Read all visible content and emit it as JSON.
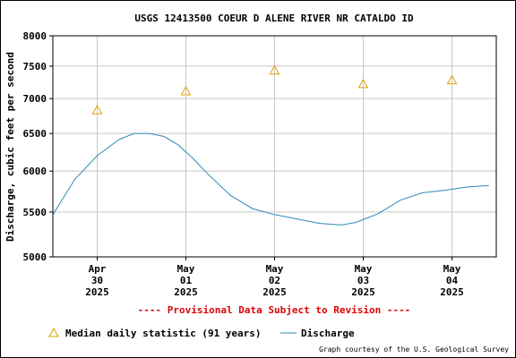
{
  "chart_data": {
    "type": "line",
    "title": "USGS 12413500 COEUR D ALENE RIVER NR CATALDO ID",
    "ylabel": "Discharge, cubic feet per second",
    "xlabel": "",
    "ylim": [
      5000,
      8000
    ],
    "yscale": "log",
    "yticks": [
      5000,
      5500,
      6000,
      6500,
      7000,
      7500,
      8000
    ],
    "grid": true,
    "xrange": [
      "2025-04-29 12:00",
      "2025-05-04 12:00"
    ],
    "xticks": [
      {
        "at": "2025-04-30 00:00",
        "lines": [
          "Apr",
          "30",
          "2025"
        ]
      },
      {
        "at": "2025-05-01 00:00",
        "lines": [
          "May",
          "01",
          "2025"
        ]
      },
      {
        "at": "2025-05-02 00:00",
        "lines": [
          "May",
          "02",
          "2025"
        ]
      },
      {
        "at": "2025-05-03 00:00",
        "lines": [
          "May",
          "03",
          "2025"
        ]
      },
      {
        "at": "2025-05-04 00:00",
        "lines": [
          "May",
          "04",
          "2025"
        ]
      }
    ],
    "series": [
      {
        "name": "Discharge",
        "color": "#2b8ab6",
        "x": [
          "2025-04-29 12:00",
          "2025-04-29 18:00",
          "2025-04-30 00:00",
          "2025-04-30 06:00",
          "2025-04-30 10:00",
          "2025-04-30 14:00",
          "2025-04-30 18:00",
          "2025-04-30 22:00",
          "2025-05-01 02:00",
          "2025-05-01 06:00",
          "2025-05-01 12:00",
          "2025-05-01 18:00",
          "2025-05-02 00:00",
          "2025-05-02 06:00",
          "2025-05-02 12:00",
          "2025-05-02 18:00",
          "2025-05-02 22:00",
          "2025-05-03 04:00",
          "2025-05-03 10:00",
          "2025-05-03 16:00",
          "2025-05-03 22:00",
          "2025-05-04 04:00",
          "2025-05-04 10:00"
        ],
        "values": [
          5470,
          5900,
          6200,
          6420,
          6500,
          6500,
          6460,
          6340,
          6160,
          5960,
          5700,
          5540,
          5470,
          5420,
          5370,
          5350,
          5380,
          5480,
          5640,
          5730,
          5760,
          5800,
          5820
        ]
      },
      {
        "name": "Median daily statistic (91 years)",
        "color": "#e0a000",
        "marker": "triangle",
        "x": [
          "2025-04-30 00:00",
          "2025-05-01 00:00",
          "2025-05-02 00:00",
          "2025-05-03 00:00",
          "2025-05-04 00:00"
        ],
        "values": [
          6830,
          7110,
          7430,
          7220,
          7280
        ]
      }
    ],
    "legend": {
      "position": "bottom",
      "median_label": "Median daily statistic (91 years)",
      "discharge_label": "Discharge"
    },
    "annotations": {
      "provisional": "---- Provisional Data Subject to Revision ----",
      "provisional_color": "#dd0000",
      "credit": "Graph courtesy of the U.S. Geological Survey"
    }
  }
}
